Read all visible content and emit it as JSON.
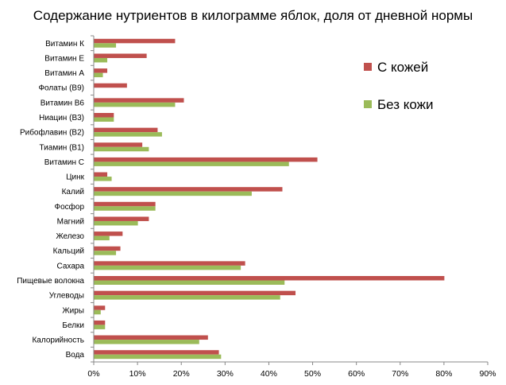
{
  "chart_data": {
    "type": "bar",
    "orientation": "horizontal",
    "title": "Содержание нутриентов в килограмме яблок, доля от дневной нормы",
    "categories": [
      "Витамин К",
      "Витамин Е",
      "Витамин А",
      "Фолаты (B9)",
      "Витамин B6",
      "Ниацин (B3)",
      "Рибофлавин (B2)",
      "Тиамин (B1)",
      "Витамин С",
      "Цинк",
      "Калий",
      "Фосфор",
      "Магний",
      "Железо",
      "Кальций",
      "Сахара",
      "Пищевые волокна",
      "Углеводы",
      "Жиры",
      "Белки",
      "Калорийность",
      "Вода"
    ],
    "series": [
      {
        "name": "С кожей",
        "color": "#c0504d",
        "values": [
          18.5,
          12,
          3,
          7.5,
          20.5,
          4.5,
          14.5,
          11,
          51,
          3,
          43,
          14,
          12.5,
          6.5,
          6,
          34.5,
          80,
          46,
          2.5,
          2.5,
          26,
          28.5
        ]
      },
      {
        "name": "Без кожи",
        "color": "#9bbb59",
        "values": [
          5,
          3,
          2,
          0,
          18.5,
          4.5,
          15.5,
          12.5,
          44.5,
          4,
          36,
          14,
          10,
          3.5,
          5,
          33.5,
          43.5,
          42.5,
          1.5,
          2.5,
          24,
          29
        ]
      }
    ],
    "xlim": [
      0,
      90
    ],
    "xticks": [
      "0%",
      "10%",
      "20%",
      "30%",
      "40%",
      "50%",
      "60%",
      "70%",
      "80%",
      "90%"
    ],
    "legend_position": "top-right"
  }
}
